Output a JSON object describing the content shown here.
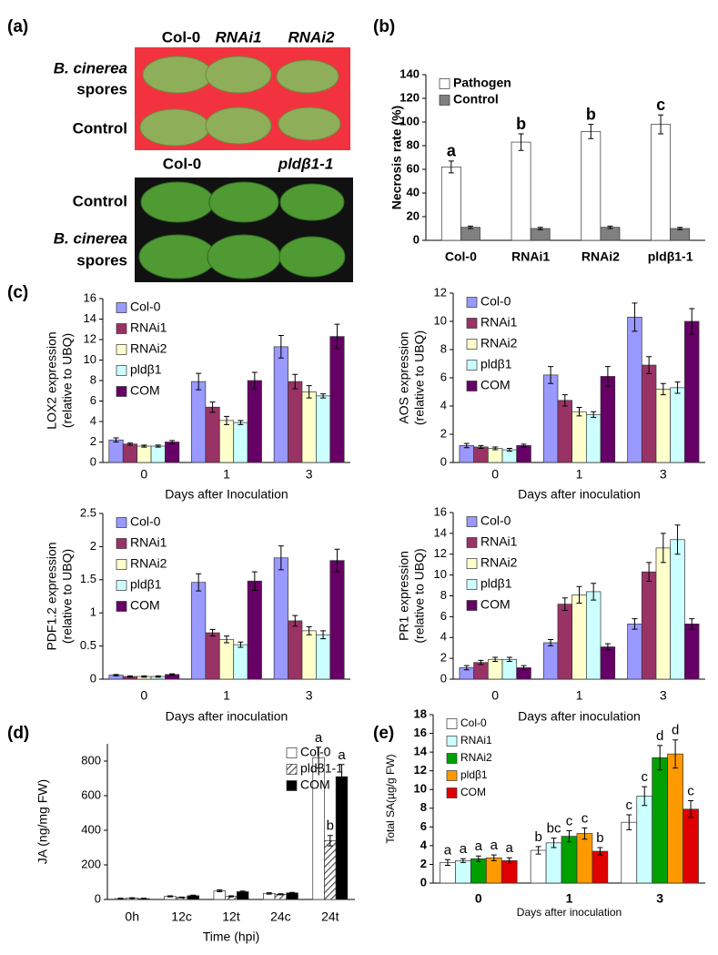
{
  "photo_panel": {
    "panel_label": "(a)",
    "top": {
      "columns": [
        "Col-0",
        "RNAi1",
        "RNAi2"
      ],
      "rows": [
        "B. cinerea",
        "spores",
        "Control"
      ]
    },
    "bottom": {
      "columns": [
        "Col-0",
        "pldβ1-1"
      ],
      "rows": [
        "Control",
        "B. cinerea",
        "spores"
      ]
    }
  },
  "chart_data": [
    {
      "type": "bar",
      "panel_label": "(b)",
      "ylabel": [
        "Necrosis rate (%)"
      ],
      "categories": [
        "Col-0",
        "RNAi1",
        "RNAi2",
        "pldβ1-1"
      ],
      "ylim": [
        0,
        140
      ],
      "yticks": [
        0,
        20,
        40,
        60,
        80,
        100,
        120,
        140
      ],
      "legend": "upper left",
      "series": [
        {
          "name": "Pathogen",
          "color": "#ffffff",
          "values": [
            62,
            83,
            92,
            98
          ],
          "errors": [
            5,
            7,
            6,
            8
          ],
          "point_labels": [
            "a",
            "b",
            "b",
            "c"
          ]
        },
        {
          "name": "Control",
          "color": "#808080",
          "values": [
            11,
            10,
            11,
            10
          ],
          "errors": [
            1,
            1,
            1,
            1
          ]
        }
      ]
    },
    {
      "type": "bar",
      "panel_label": "(c)",
      "ylabel": [
        "LOX2 expression",
        "(relative to UBQ)"
      ],
      "xlabel": "Days after Inoculation",
      "categories": [
        "0",
        "1",
        "3"
      ],
      "ylim": [
        0,
        16
      ],
      "yticks": [
        0,
        2,
        4,
        6,
        8,
        10,
        12,
        14,
        16
      ],
      "legend": "upper left",
      "series": [
        {
          "name": "Col-0",
          "color": "#9999ff",
          "values": [
            2.2,
            7.9,
            11.3
          ],
          "errors": [
            0.2,
            0.8,
            1.1
          ]
        },
        {
          "name": "RNAi1",
          "color": "#993366",
          "values": [
            1.8,
            5.4,
            7.9
          ],
          "errors": [
            0.1,
            0.5,
            0.7
          ]
        },
        {
          "name": "RNAi2",
          "color": "#ffffcc",
          "values": [
            1.6,
            4.1,
            6.9
          ],
          "errors": [
            0.1,
            0.4,
            0.6
          ]
        },
        {
          "name": "pldβ1",
          "color": "#ccffff",
          "values": [
            1.6,
            3.9,
            6.5
          ],
          "errors": [
            0.1,
            0.2,
            0.2
          ]
        },
        {
          "name": "COM",
          "color": "#660066",
          "values": [
            2.0,
            8.0,
            12.3
          ],
          "errors": [
            0.15,
            0.8,
            1.2
          ]
        }
      ]
    },
    {
      "type": "bar",
      "ylabel": [
        "AOS expression",
        "(relative to UBQ)"
      ],
      "xlabel": "Days after inoculation",
      "categories": [
        "0",
        "1",
        "3"
      ],
      "ylim": [
        0,
        12
      ],
      "yticks": [
        0,
        2,
        4,
        6,
        8,
        10,
        12
      ],
      "legend": "upper left",
      "series": [
        {
          "name": "Col-0",
          "color": "#9999ff",
          "values": [
            1.2,
            6.2,
            10.3
          ],
          "errors": [
            0.15,
            0.6,
            1.0
          ]
        },
        {
          "name": "RNAi1",
          "color": "#993366",
          "values": [
            1.1,
            4.4,
            6.9
          ],
          "errors": [
            0.1,
            0.4,
            0.6
          ]
        },
        {
          "name": "RNAi2",
          "color": "#ffffcc",
          "values": [
            1.0,
            3.6,
            5.2
          ],
          "errors": [
            0.1,
            0.3,
            0.4
          ]
        },
        {
          "name": "pldβ1",
          "color": "#ccffff",
          "values": [
            0.9,
            3.4,
            5.3
          ],
          "errors": [
            0.1,
            0.2,
            0.4
          ]
        },
        {
          "name": "COM",
          "color": "#660066",
          "values": [
            1.2,
            6.1,
            10.0
          ],
          "errors": [
            0.1,
            0.7,
            0.9
          ]
        }
      ]
    },
    {
      "type": "bar",
      "ylabel": [
        "PDF1.2 expression",
        "(relative to UBQ)"
      ],
      "xlabel": "Days after inoculation",
      "categories": [
        "0",
        "1",
        "3"
      ],
      "ylim": [
        0,
        2.5
      ],
      "yticks": [
        0,
        0.5,
        1,
        1.5,
        2,
        2.5
      ],
      "legend": "upper left",
      "series": [
        {
          "name": "Col-0",
          "color": "#9999ff",
          "values": [
            0.06,
            1.46,
            1.83
          ],
          "errors": [
            0.01,
            0.13,
            0.18
          ]
        },
        {
          "name": "RNAi1",
          "color": "#993366",
          "values": [
            0.04,
            0.7,
            0.88
          ],
          "errors": [
            0.01,
            0.05,
            0.08
          ]
        },
        {
          "name": "RNAi2",
          "color": "#ffffcc",
          "values": [
            0.04,
            0.6,
            0.73
          ],
          "errors": [
            0.01,
            0.05,
            0.06
          ]
        },
        {
          "name": "pldβ1",
          "color": "#ccffff",
          "values": [
            0.04,
            0.52,
            0.67
          ],
          "errors": [
            0.01,
            0.04,
            0.06
          ]
        },
        {
          "name": "COM",
          "color": "#660066",
          "values": [
            0.07,
            1.48,
            1.79
          ],
          "errors": [
            0.01,
            0.14,
            0.17
          ]
        }
      ]
    },
    {
      "type": "bar",
      "ylabel": [
        "PR1 expression",
        "(relative to UBQ)"
      ],
      "xlabel": "Days after inoculation",
      "categories": [
        "0",
        "1",
        "3"
      ],
      "ylim": [
        0,
        16
      ],
      "yticks": [
        0,
        2,
        4,
        6,
        8,
        10,
        12,
        14,
        16
      ],
      "legend": "upper left",
      "series": [
        {
          "name": "Col-0",
          "color": "#9999ff",
          "values": [
            1.1,
            3.5,
            5.3
          ],
          "errors": [
            0.2,
            0.3,
            0.5
          ]
        },
        {
          "name": "RNAi1",
          "color": "#993366",
          "values": [
            1.6,
            7.2,
            10.3
          ],
          "errors": [
            0.2,
            0.6,
            0.9
          ]
        },
        {
          "name": "RNAi2",
          "color": "#ffffcc",
          "values": [
            1.9,
            8.1,
            12.6
          ],
          "errors": [
            0.2,
            0.8,
            1.4
          ]
        },
        {
          "name": "pldβ1",
          "color": "#ccffff",
          "values": [
            1.9,
            8.4,
            13.4
          ],
          "errors": [
            0.2,
            0.8,
            1.4
          ]
        },
        {
          "name": "COM",
          "color": "#660066",
          "values": [
            1.1,
            3.1,
            5.3
          ],
          "errors": [
            0.2,
            0.3,
            0.5
          ]
        }
      ]
    },
    {
      "type": "bar",
      "panel_label": "(d)",
      "ylabel": [
        "JA (ng/mg FW)"
      ],
      "xlabel": "Time (hpi)",
      "categories": [
        "0h",
        "12c",
        "12t",
        "24c",
        "24t"
      ],
      "ylim": [
        0,
        900
      ],
      "yticks": [
        0,
        200,
        400,
        600,
        800
      ],
      "legend": "upper right",
      "series": [
        {
          "name": "Col-0",
          "color": "#ffffff",
          "values": [
            5,
            18,
            50,
            35,
            820
          ],
          "errors": [
            2,
            3,
            5,
            4,
            60
          ],
          "point_labels": [
            null,
            null,
            null,
            null,
            "a"
          ]
        },
        {
          "name": "pldβ1-1",
          "color": "#888888",
          "hatch": true,
          "values": [
            8,
            12,
            18,
            30,
            340
          ],
          "errors": [
            2,
            2,
            3,
            3,
            30
          ],
          "point_labels": [
            null,
            null,
            null,
            null,
            "b"
          ]
        },
        {
          "name": "COM",
          "color": "#000000",
          "values": [
            5,
            22,
            45,
            38,
            710
          ],
          "errors": [
            2,
            3,
            4,
            3,
            70
          ],
          "point_labels": [
            null,
            null,
            null,
            null,
            "a"
          ]
        }
      ]
    },
    {
      "type": "bar",
      "panel_label": "(e)",
      "ylabel": [
        "Total SA(µg/g FW)"
      ],
      "xlabel": "Days after inoculation",
      "categories": [
        "0",
        "1",
        "3"
      ],
      "ylim": [
        0,
        18
      ],
      "yticks": [
        0,
        2,
        4,
        6,
        8,
        10,
        12,
        14,
        16,
        18
      ],
      "legend": "upper left",
      "series": [
        {
          "name": "Col-0",
          "color": "#ffffff",
          "values": [
            2.2,
            3.5,
            6.5
          ],
          "errors": [
            0.3,
            0.4,
            0.8
          ],
          "point_labels": [
            "a",
            "b",
            "c"
          ]
        },
        {
          "name": "RNAi1",
          "color": "#ccffff",
          "values": [
            2.4,
            4.3,
            9.3
          ],
          "errors": [
            0.2,
            0.5,
            1.0
          ],
          "point_labels": [
            "a",
            "bc",
            "c"
          ]
        },
        {
          "name": "RNAi2",
          "color": "#00a000",
          "values": [
            2.6,
            5.0,
            13.4
          ],
          "errors": [
            0.3,
            0.6,
            1.3
          ],
          "point_labels": [
            "a",
            "c",
            "d"
          ]
        },
        {
          "name": "pldβ1",
          "color": "#ff9900",
          "values": [
            2.7,
            5.3,
            13.8
          ],
          "errors": [
            0.3,
            0.6,
            1.5
          ],
          "point_labels": [
            "a",
            "c",
            "d"
          ]
        },
        {
          "name": "COM",
          "color": "#e00000",
          "values": [
            2.4,
            3.4,
            7.9
          ],
          "errors": [
            0.3,
            0.4,
            0.9
          ],
          "point_labels": [
            "a",
            "b",
            "c"
          ]
        }
      ]
    }
  ]
}
